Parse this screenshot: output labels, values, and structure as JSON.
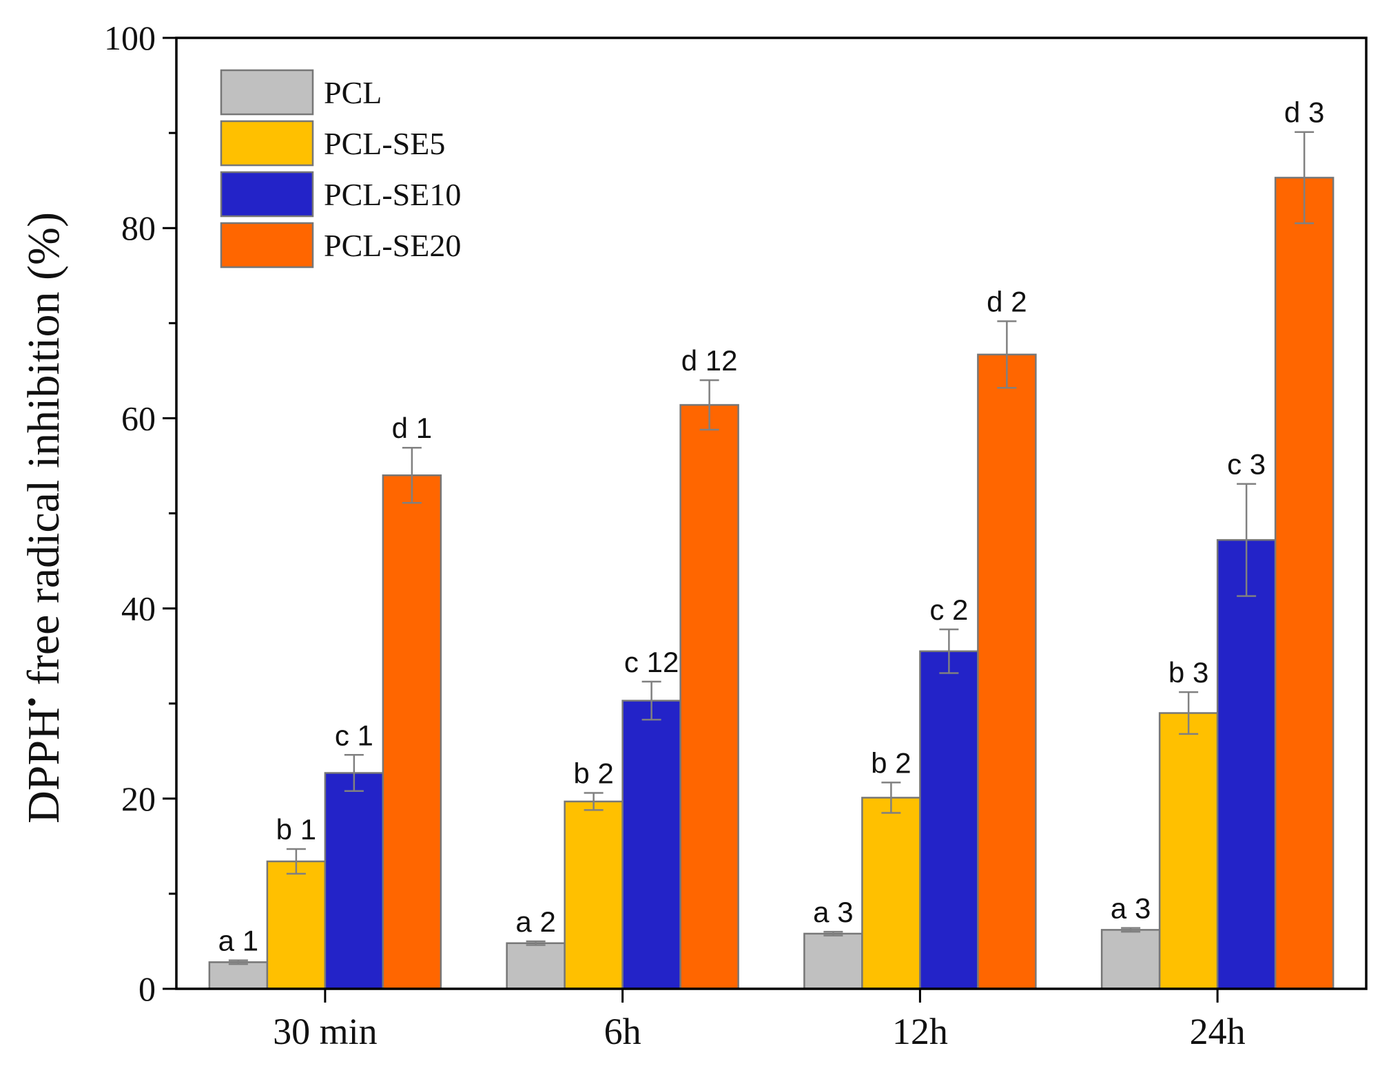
{
  "chart_data": {
    "type": "bar",
    "title": "",
    "xlabel": "",
    "ylabel": "DPPH",
    "ylabel_superscript": "•",
    "ylabel_rest": " free radical inhibition (%)",
    "ylim": [
      0,
      100
    ],
    "yticks": [
      "0",
      "20",
      "40",
      "60",
      "80",
      "100"
    ],
    "grid": false,
    "legend_position": "top-left",
    "categories": [
      "30 min",
      "6h",
      "12h",
      "24h"
    ],
    "series": [
      {
        "name": "PCL",
        "color": "#c0c0c0",
        "values": [
          2.8,
          4.8,
          5.8,
          6.2
        ],
        "errors": [
          0.2,
          0.2,
          0.2,
          0.2
        ],
        "annotations": [
          "a 1",
          "a 2",
          "a 3",
          "a 3"
        ]
      },
      {
        "name": "PCL-SE5",
        "color": "#ffc000",
        "values": [
          13.4,
          19.7,
          20.1,
          29.0
        ],
        "errors": [
          1.3,
          0.9,
          1.6,
          2.2
        ],
        "annotations": [
          "b 1",
          "b 2",
          "b 2",
          "b 3"
        ]
      },
      {
        "name": "PCL-SE10",
        "color": "#2323c8",
        "values": [
          22.7,
          30.3,
          35.5,
          47.2
        ],
        "errors": [
          1.9,
          2.0,
          2.3,
          5.9
        ],
        "annotations": [
          "c 1",
          "c 12",
          "c 2",
          "c 3"
        ]
      },
      {
        "name": "PCL-SE20",
        "color": "#ff6600",
        "values": [
          54.0,
          61.4,
          66.7,
          85.3
        ],
        "errors": [
          2.9,
          2.6,
          3.5,
          4.8
        ],
        "annotations": [
          "d 1",
          "d 12",
          "d 2",
          "d 3"
        ]
      }
    ]
  }
}
